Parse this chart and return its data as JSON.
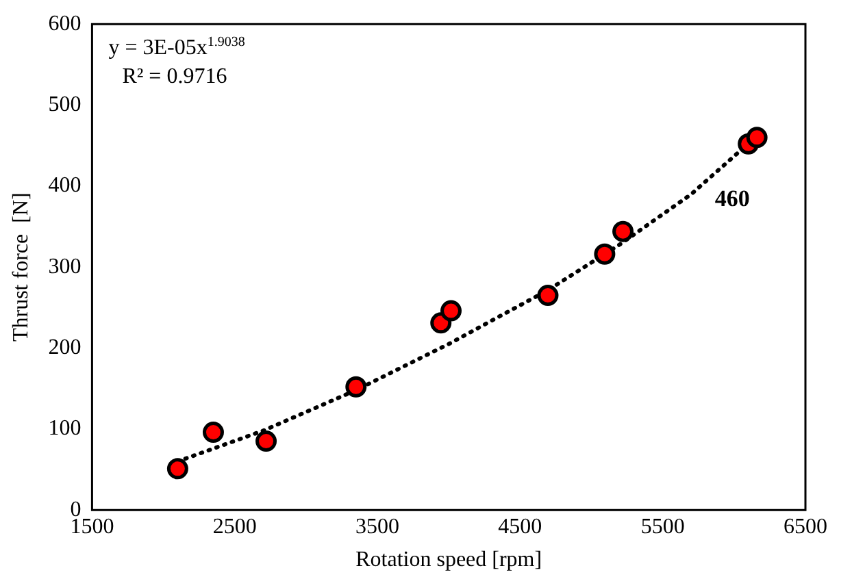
{
  "chart_data": {
    "type": "scatter",
    "xlabel": "Rotation speed [rpm]",
    "ylabel": "Thrust force  [N]",
    "xlim": [
      1500,
      6500
    ],
    "xticks": [
      1500,
      2500,
      3500,
      4500,
      5500,
      6500
    ],
    "ylim": [
      0,
      600
    ],
    "yticks": [
      0,
      100,
      200,
      300,
      400,
      500,
      600
    ],
    "grid": false,
    "legend": false,
    "annotations": [
      "y = 3E-05x$^{1.9038}$",
      "R² = 0.9716"
    ],
    "series": [
      {
        "type": "scatter",
        "color": "#ff0000",
        "marker": "circle",
        "x": [
          2100,
          2350,
          2720,
          3350,
          3945,
          4016,
          4695,
          5093,
          5221,
          6100,
          6160
        ],
        "values": [
          51,
          96,
          85,
          152,
          231,
          246,
          265,
          316,
          344,
          452,
          460
        ],
        "value_labels": [
          null,
          null,
          null,
          null,
          null,
          null,
          null,
          null,
          null,
          null,
          "460"
        ]
      },
      {
        "type": "line",
        "color": "#000000",
        "marker": "none",
        "line_style": "dotted",
        "x": [
          2100,
          2700,
          3350,
          4000,
          4700,
          5200,
          5700,
          6180
        ],
        "values": [
          60,
          98,
          148,
          205,
          272,
          328,
          390,
          465
        ]
      }
    ]
  }
}
